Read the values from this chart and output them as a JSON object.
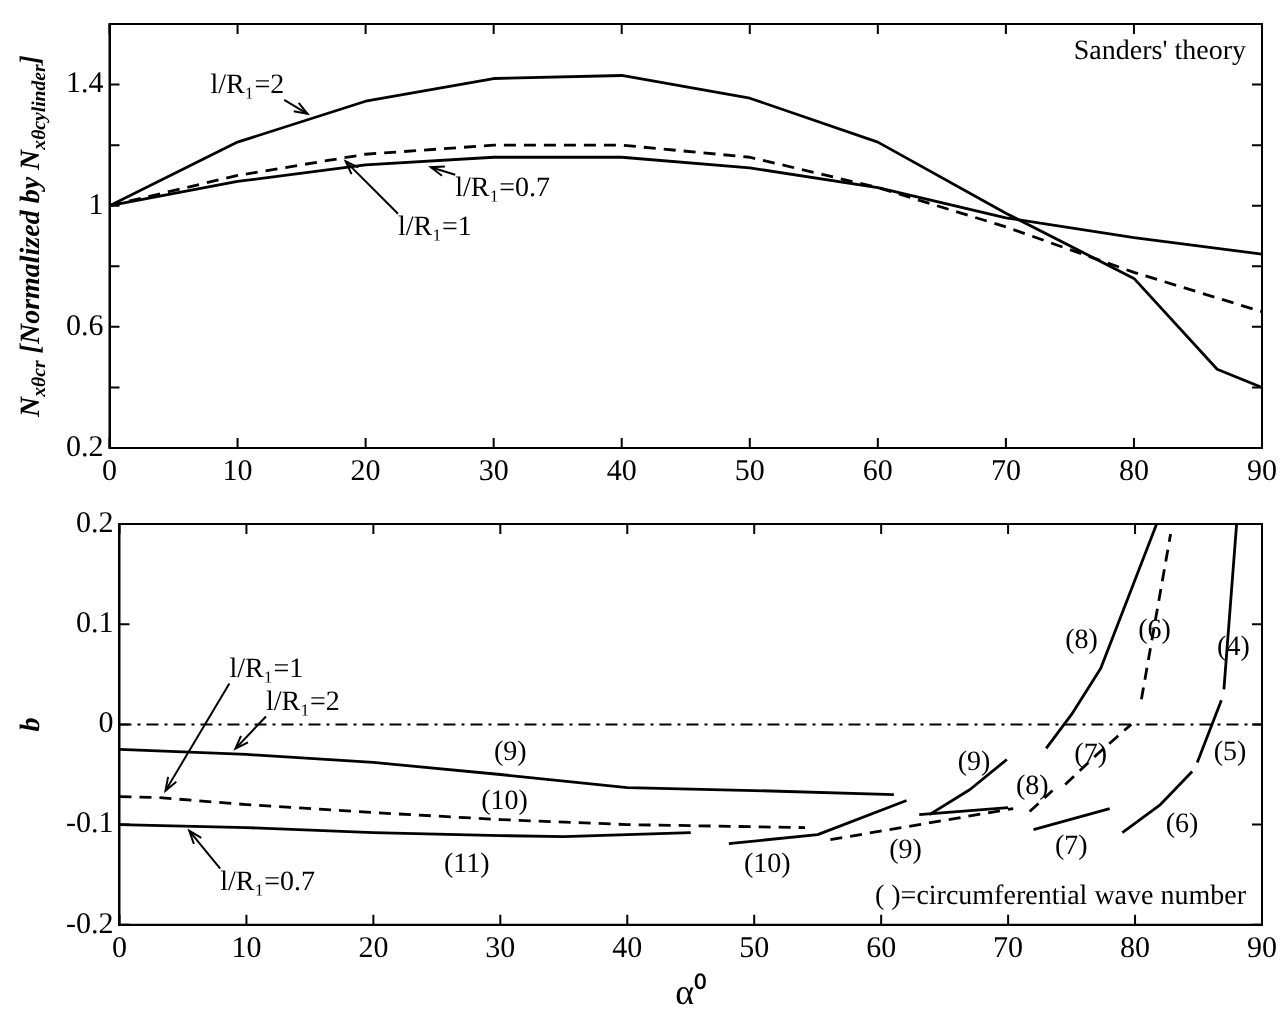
{
  "chart_data": [
    {
      "type": "line",
      "ylabel": "N$_{xθcr}$ [Normalized by N$_{xθcylinder}$]",
      "xlim": [
        0,
        90
      ],
      "xticks": [
        0,
        10,
        20,
        30,
        40,
        50,
        60,
        70,
        80,
        90
      ],
      "ylim": [
        0.2,
        1.6
      ],
      "yticks": [
        0.2,
        {
          "value": 0.4,
          "label": null
        },
        0.6,
        {
          "value": 0.8,
          "label": null
        },
        1,
        {
          "value": 1.2,
          "label": null
        },
        1.4
      ],
      "series": [
        {
          "color": "#000000",
          "line_style": "solid",
          "x": [
            0,
            10,
            20,
            30,
            40,
            50,
            60,
            70,
            80,
            86.5,
            90
          ],
          "values": [
            1,
            1.21,
            1.345,
            1.42,
            1.43,
            1.355,
            1.21,
            0.975,
            0.76,
            0.46,
            0.4
          ]
        },
        {
          "color": "#000000",
          "line_style": "dashed",
          "x": [
            0,
            10,
            20,
            30,
            40,
            50,
            60,
            70,
            80,
            90
          ],
          "values": [
            1,
            1.1,
            1.17,
            1.2,
            1.2,
            1.16,
            1.06,
            0.93,
            0.78,
            0.65
          ]
        },
        {
          "color": "#000000",
          "line_style": "solid",
          "x": [
            0,
            10,
            20,
            30,
            40,
            50,
            60,
            70,
            80,
            90
          ],
          "values": [
            1,
            1.08,
            1.135,
            1.16,
            1.16,
            1.125,
            1.06,
            0.96,
            0.895,
            0.84
          ]
        }
      ],
      "annotations": [
        {
          "text": "l/R₁=2",
          "x": 16,
          "y": 1.29
        },
        {
          "text": "l/R₁=0.7",
          "x": 24.5,
          "y": 1.135
        },
        {
          "text": "l/R₁=1",
          "x": 18,
          "y": 1.165
        },
        "Sanders' theory"
      ]
    },
    {
      "type": "line",
      "xlabel": "α⁰",
      "ylabel": "b",
      "xlim": [
        0,
        90
      ],
      "xticks": [
        0,
        10,
        20,
        30,
        40,
        50,
        60,
        70,
        80,
        90
      ],
      "ylim": [
        -0.2,
        0.2
      ],
      "yticks": [
        -0.2,
        -0.1,
        0,
        0.1,
        0.2
      ],
      "ref_lines": [
        {
          "axis": "y",
          "value": 0,
          "line_style": "dashed"
        }
      ],
      "series": [
        {
          "color": "#000000",
          "line_style": "solid",
          "x": [
            0,
            10,
            20,
            30,
            40,
            50,
            61,
            62,
            63,
            70,
            71,
            72,
            78,
            78.5,
            79,
            82,
            84.5,
            84.7,
            84.9,
            86.8,
            86.9,
            87,
            88
          ],
          "values": [
            -0.025,
            -0.03,
            -0.038,
            -0.05,
            -0.063,
            -0.066,
            -0.07,
            null,
            -0.09,
            -0.083,
            null,
            -0.105,
            -0.084,
            null,
            -0.108,
            -0.08,
            -0.047,
            null,
            -0.038,
            0.024,
            null,
            0.035,
            0.2
          ]
        },
        {
          "color": "#000000",
          "line_style": "dashed",
          "x": [
            0,
            3,
            10,
            20,
            30,
            40,
            54,
            55,
            56,
            63,
            70.4,
            71,
            71.7,
            73.5,
            74,
            74.5,
            77,
            79.7,
            80,
            80.5,
            82.8
          ],
          "values": [
            -0.072,
            -0.073,
            -0.08,
            -0.088,
            -0.095,
            -0.1,
            -0.103,
            null,
            -0.115,
            -0.1,
            -0.084,
            null,
            -0.087,
            -0.066,
            null,
            -0.06,
            -0.03,
            0,
            null,
            0.025,
            0.19
          ]
        },
        {
          "color": "#000000",
          "line_style": "solid",
          "x": [
            0,
            10,
            20,
            30,
            35,
            45,
            46,
            48,
            55,
            62,
            62.5,
            63.8,
            67,
            69.9,
            71,
            73,
            75,
            77.3,
            81.7
          ],
          "values": [
            -0.1,
            -0.103,
            -0.108,
            -0.111,
            -0.112,
            -0.108,
            null,
            -0.119,
            -0.11,
            -0.076,
            null,
            -0.09,
            -0.065,
            -0.035,
            null,
            -0.024,
            0.01,
            0.056,
            0.2
          ]
        }
      ],
      "annotations": [
        {
          "text": "l/R₁=1",
          "x": 3.3,
          "y": -0.073
        },
        {
          "text": "l/R₁=2",
          "x": 8.7,
          "y": -0.03
        },
        {
          "text": "l/R₁=0.7",
          "x": 5.1,
          "y": -0.1
        },
        "(9)",
        "(10)",
        "(11)",
        "(8)",
        "(6)",
        "(4)",
        "(9)",
        "(8)",
        "(7)",
        "(5)",
        "(6)",
        "(7)",
        "(9)",
        "(10)",
        "( )=circumferential wave number"
      ]
    }
  ]
}
